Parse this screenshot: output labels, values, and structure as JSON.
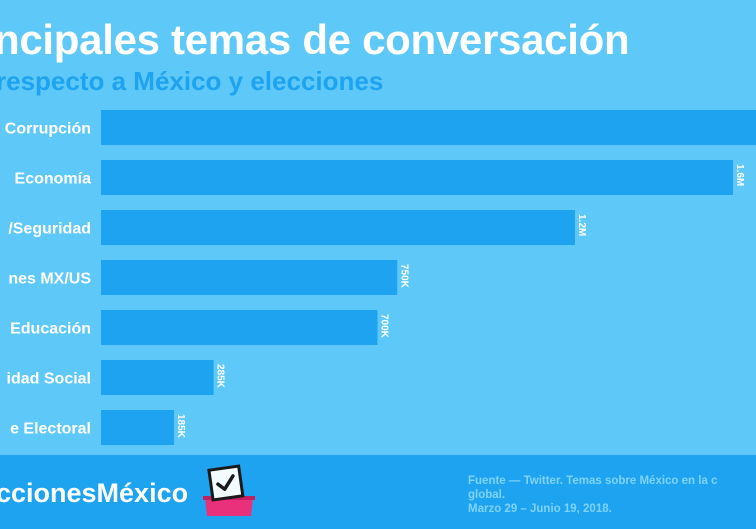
{
  "header": {
    "title": "ncipales temas de conversación",
    "subtitle": "respecto a México y elecciones"
  },
  "chart_data": {
    "type": "bar",
    "orientation": "horizontal",
    "categories": [
      "Corrupción",
      "Economía",
      "/Seguridad",
      "nes MX/US",
      "Educación",
      "idad Social",
      "e Electoral"
    ],
    "values": [
      1700000,
      1600000,
      1200000,
      750000,
      700000,
      285000,
      185000
    ],
    "value_labels": [
      "",
      "1.6M",
      "1.2M",
      "750K",
      "700K",
      "285K",
      "185K"
    ],
    "colors": {
      "bar": "#1ea3f0",
      "label": "#ffffff"
    }
  },
  "footer": {
    "hashtag": "ccionesMéxico",
    "source_lines": [
      "Fuente — Twitter. Temas sobre México en la c",
      "global.",
      "Marzo 29 – Junio 19, 2018."
    ]
  }
}
